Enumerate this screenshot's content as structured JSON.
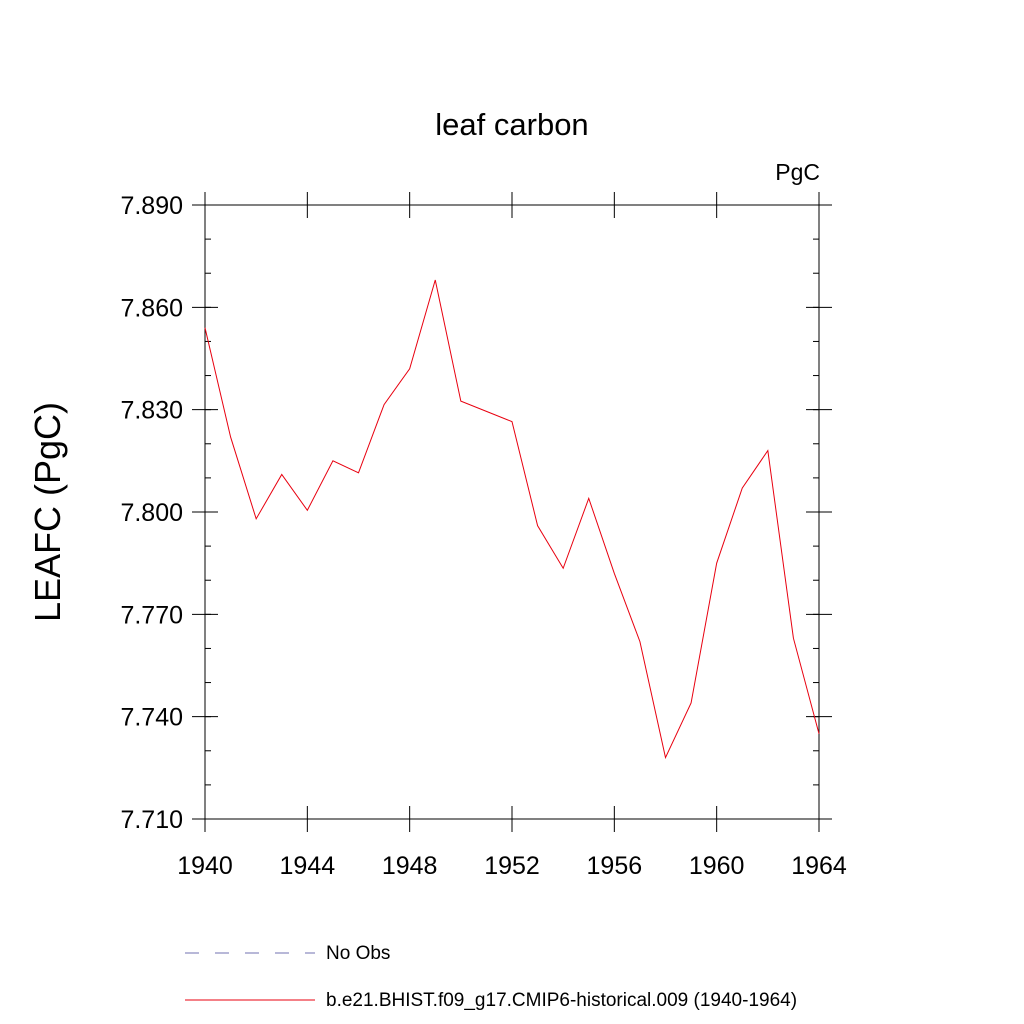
{
  "chart_data": {
    "type": "line",
    "title": "leaf carbon",
    "units_label": "PgC",
    "ylabel": "LEAFC  (PgC)",
    "xlabel": "",
    "xlim": [
      1940,
      1964
    ],
    "ylim": [
      7.71,
      7.89
    ],
    "x_ticks": [
      "1940",
      "1944",
      "1948",
      "1952",
      "1956",
      "1960",
      "1964"
    ],
    "y_ticks": [
      "7.710",
      "7.740",
      "7.770",
      "7.800",
      "7.830",
      "7.860",
      "7.890"
    ],
    "series": [
      {
        "name": "b.e21.BHIST.f09_g17.CMIP6-historical.009 (1940-1964)",
        "color": "#e8000f",
        "style": "solid",
        "x": [
          1940,
          1941,
          1942,
          1943,
          1944,
          1945,
          1946,
          1947,
          1948,
          1949,
          1950,
          1951,
          1952,
          1953,
          1954,
          1955,
          1956,
          1957,
          1958,
          1959,
          1960,
          1961,
          1962,
          1963,
          1964
        ],
        "values": [
          7.854,
          7.822,
          7.798,
          7.811,
          7.8005,
          7.815,
          7.8115,
          7.8315,
          7.842,
          7.868,
          7.8325,
          7.8295,
          7.8265,
          7.796,
          7.7835,
          7.804,
          7.782,
          7.762,
          7.728,
          7.744,
          7.785,
          7.807,
          7.818,
          7.763,
          7.735
        ]
      }
    ],
    "legend": [
      {
        "label": "No Obs",
        "color": "#7070b0",
        "style": "dashed"
      },
      {
        "label": "b.e21.BHIST.f09_g17.CMIP6-historical.009 (1940-1964)",
        "color": "#e8000f",
        "style": "solid"
      }
    ]
  }
}
